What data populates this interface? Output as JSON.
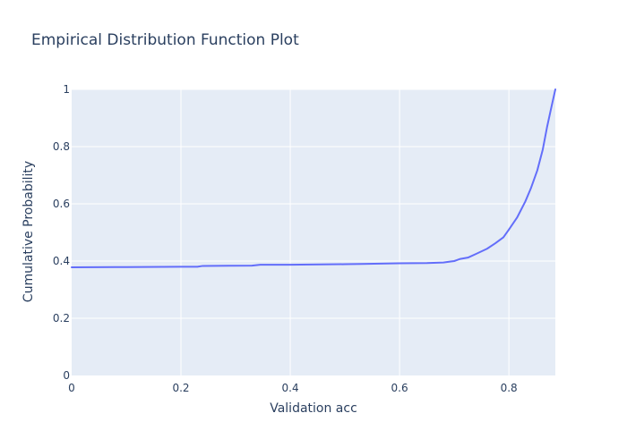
{
  "chart_data": {
    "type": "line",
    "title": "Empirical Distribution Function Plot",
    "xlabel": "Validation acc",
    "ylabel": "Cumulative Probability",
    "xlim": [
      0,
      0.885
    ],
    "ylim": [
      0,
      1
    ],
    "x_ticks": [
      {
        "value": 0,
        "label": "0"
      },
      {
        "value": 0.2,
        "label": "0.2"
      },
      {
        "value": 0.4,
        "label": "0.4"
      },
      {
        "value": 0.6,
        "label": "0.6"
      },
      {
        "value": 0.8,
        "label": "0.8"
      }
    ],
    "y_ticks": [
      {
        "value": 0,
        "label": "0"
      },
      {
        "value": 0.2,
        "label": "0.2"
      },
      {
        "value": 0.4,
        "label": "0.4"
      },
      {
        "value": 0.6,
        "label": "0.6"
      },
      {
        "value": 0.8,
        "label": "0.8"
      },
      {
        "value": 1,
        "label": "1"
      }
    ],
    "grid": true,
    "colors": {
      "plot_background": "#e5ecf6",
      "grid": "#ffffff",
      "line": "#636efa",
      "text": "#2a3f5f"
    },
    "series": [
      {
        "x": [
          0,
          0.1,
          0.2,
          0.23,
          0.24,
          0.33,
          0.345,
          0.4,
          0.5,
          0.53,
          0.6,
          0.65,
          0.68,
          0.7,
          0.71,
          0.725,
          0.74,
          0.76,
          0.775,
          0.79,
          0.8,
          0.815,
          0.83,
          0.84,
          0.852,
          0.862,
          0.87,
          0.878,
          0.885
        ],
        "y": [
          0.378,
          0.379,
          0.38,
          0.38,
          0.383,
          0.384,
          0.387,
          0.387,
          0.389,
          0.39,
          0.392,
          0.393,
          0.395,
          0.4,
          0.407,
          0.412,
          0.425,
          0.443,
          0.462,
          0.483,
          0.51,
          0.552,
          0.608,
          0.653,
          0.717,
          0.79,
          0.87,
          0.94,
          1.0
        ]
      }
    ]
  }
}
